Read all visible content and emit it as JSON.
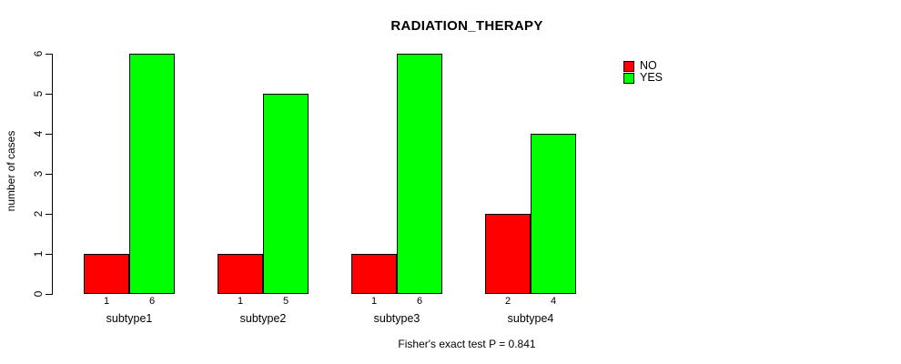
{
  "chart_data": {
    "type": "bar",
    "title": "RADIATION_THERAPY",
    "xlabel": "",
    "ylabel": "number of cases",
    "categories": [
      "subtype1",
      "subtype2",
      "subtype3",
      "subtype4"
    ],
    "series": [
      {
        "name": "NO",
        "color": "#ff0000",
        "values": [
          1,
          1,
          1,
          2
        ]
      },
      {
        "name": "YES",
        "color": "#00ff00",
        "values": [
          6,
          5,
          6,
          4
        ]
      }
    ],
    "bar_value_labels": [
      [
        1,
        6
      ],
      [
        1,
        5
      ],
      [
        1,
        6
      ],
      [
        2,
        4
      ]
    ],
    "ylim": [
      0,
      6
    ],
    "yticks": [
      0,
      1,
      2,
      3,
      4,
      5,
      6
    ],
    "grid": false,
    "legend_position": "top-right",
    "annotation": "Fisher's exact test P = 0.841",
    "colors": {
      "background": "#ffffff",
      "axis": "#000000",
      "text": "#000000"
    }
  }
}
